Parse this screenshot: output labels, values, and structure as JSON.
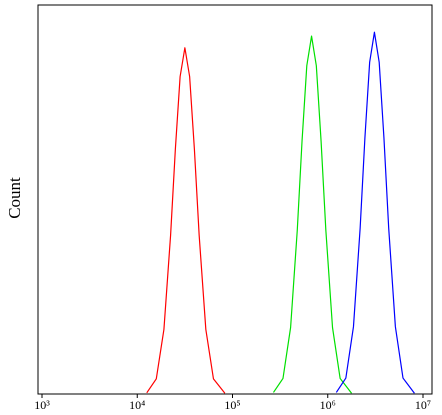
{
  "chart_data": {
    "type": "line",
    "ylabel": "Count",
    "xscale": "log",
    "xlim": [
      1000,
      10000000
    ],
    "xticks": [
      {
        "value": 1000,
        "label": "10³"
      },
      {
        "value": 10000,
        "label": "10⁴"
      },
      {
        "value": 100000,
        "label": "10⁵"
      },
      {
        "value": 1000000,
        "label": "10⁶"
      },
      {
        "value": 10000000,
        "label": "10⁷"
      }
    ],
    "ylim": [
      0,
      100
    ],
    "series": [
      {
        "color": "#ff0000",
        "x": [
          12589,
          15849,
          19055,
          22387,
          25119,
          28184,
          31623,
          35481,
          39811,
          44668,
          52481,
          63096,
          83176
        ],
        "values": [
          0.3,
          3.9,
          16.6,
          40.8,
          62.9,
          81.6,
          89,
          81.6,
          62.9,
          40.8,
          16.6,
          3.9,
          0.2
        ]
      },
      {
        "color": "#00e000",
        "x": [
          269153,
          338844,
          407380,
          478630,
          537032,
          602560,
          676083,
          758578,
          851138,
          954993,
          1122018,
          1348963,
          1778279
        ],
        "values": [
          0.4,
          4.0,
          17.1,
          42.1,
          65.0,
          84.4,
          92,
          84.4,
          65.0,
          42.1,
          17.1,
          4.0,
          0.2
        ]
      },
      {
        "color": "#0000ff",
        "x": [
          1230269,
          1548817,
          1862087,
          2187762,
          2454709,
          2754229,
          3090295,
          3467369,
          3890451,
          4365158,
          5128614,
          6165950,
          8128305
        ],
        "values": [
          0.4,
          4.1,
          17.3,
          42.6,
          65.8,
          85.3,
          93,
          85.3,
          65.8,
          42.6,
          17.3,
          4.1,
          0.2
        ]
      }
    ]
  }
}
